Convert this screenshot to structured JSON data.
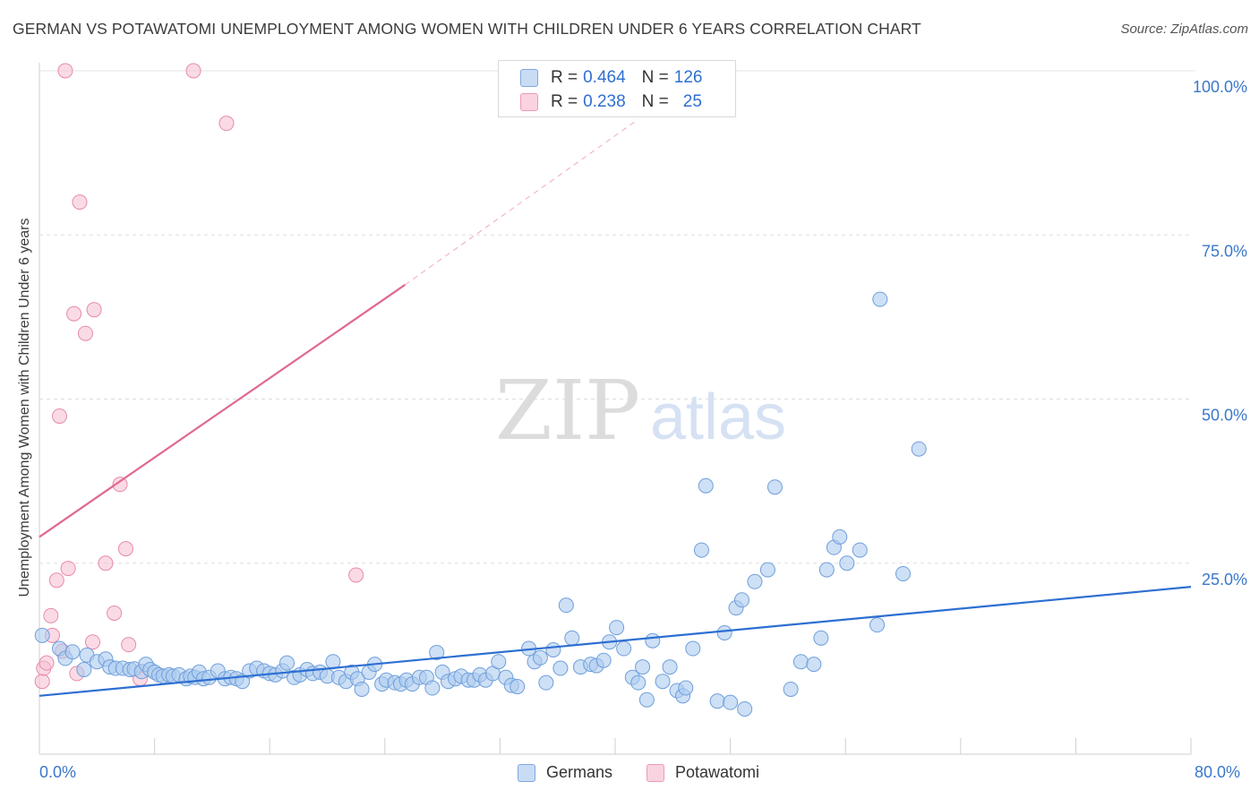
{
  "header": {
    "title": "GERMAN VS POTAWATOMI UNEMPLOYMENT AMONG WOMEN WITH CHILDREN UNDER 6 YEARS CORRELATION CHART",
    "source": "Source: ZipAtlas.com"
  },
  "watermark": {
    "zip": "ZIP",
    "atlas": "atlas"
  },
  "legend_top": {
    "rows": [
      {
        "r_label": "R =",
        "r_value": "0.464",
        "n_label": "N =",
        "n_value": "126",
        "color": "#aecbef"
      },
      {
        "r_label": "R =",
        "r_value": "0.238",
        "n_label": "N =",
        "n_value": "25",
        "color": "#f6bdd0"
      }
    ]
  },
  "legend_bottom": {
    "germans": "Germans",
    "potawatomi": "Potawatomi"
  },
  "x_tick_labels": {
    "left": "0.0%",
    "right": "80.0%"
  },
  "colors": {
    "germans_fill": "#aecbef",
    "germans_stroke": "#6f9fdc",
    "germans_line": "#2d6fd2",
    "pota_fill": "#f6bdd0",
    "pota_stroke": "#e88aab",
    "pota_line": "#e0688f",
    "tick_text": "#3a78c9",
    "grid": "#dddddd"
  },
  "chart_data": {
    "type": "scatter",
    "title": "GERMAN VS POTAWATOMI UNEMPLOYMENT AMONG WOMEN WITH CHILDREN UNDER 6 YEARS CORRELATION CHART",
    "xlabel": "",
    "ylabel": "Unemployment Among Women with Children Under 6 years",
    "xlim": [
      0,
      80
    ],
    "ylim": [
      0,
      100
    ],
    "y_ticks": [
      "100.0%",
      "75.0%",
      "50.0%",
      "25.0%"
    ],
    "y_tick_values": [
      100,
      75,
      50,
      25
    ],
    "grid": true,
    "legend_position": "bottom",
    "series": [
      {
        "name": "Germans",
        "trend": {
          "x": [
            0,
            80
          ],
          "y": [
            4.8,
            21.4
          ],
          "style": "solid"
        },
        "points": [
          [
            0.2,
            14.0
          ],
          [
            1.4,
            12.0
          ],
          [
            1.8,
            10.5
          ],
          [
            2.3,
            11.5
          ],
          [
            3.1,
            8.8
          ],
          [
            3.3,
            11.0
          ],
          [
            4.0,
            10.0
          ],
          [
            4.6,
            10.4
          ],
          [
            4.9,
            9.2
          ],
          [
            5.3,
            9.0
          ],
          [
            5.8,
            9.0
          ],
          [
            6.3,
            8.8
          ],
          [
            6.6,
            8.9
          ],
          [
            7.1,
            8.5
          ],
          [
            7.4,
            9.6
          ],
          [
            7.7,
            8.8
          ],
          [
            8.0,
            8.4
          ],
          [
            8.3,
            8.0
          ],
          [
            8.6,
            7.8
          ],
          [
            9.0,
            8.0
          ],
          [
            9.3,
            7.8
          ],
          [
            9.7,
            8.0
          ],
          [
            10.2,
            7.4
          ],
          [
            10.5,
            7.8
          ],
          [
            10.8,
            7.6
          ],
          [
            11.1,
            8.4
          ],
          [
            11.4,
            7.4
          ],
          [
            11.8,
            7.6
          ],
          [
            12.4,
            8.6
          ],
          [
            12.9,
            7.4
          ],
          [
            13.3,
            7.6
          ],
          [
            13.7,
            7.4
          ],
          [
            14.1,
            7.0
          ],
          [
            14.6,
            8.6
          ],
          [
            15.1,
            9.0
          ],
          [
            15.6,
            8.6
          ],
          [
            16.0,
            8.2
          ],
          [
            16.4,
            8.0
          ],
          [
            16.9,
            8.6
          ],
          [
            17.2,
            9.8
          ],
          [
            17.7,
            7.6
          ],
          [
            18.1,
            8.0
          ],
          [
            18.6,
            8.8
          ],
          [
            19.0,
            8.2
          ],
          [
            19.5,
            8.4
          ],
          [
            20.0,
            7.8
          ],
          [
            20.4,
            10.0
          ],
          [
            20.8,
            7.6
          ],
          [
            21.3,
            7.0
          ],
          [
            21.7,
            8.4
          ],
          [
            22.1,
            7.4
          ],
          [
            22.4,
            5.8
          ],
          [
            22.9,
            8.4
          ],
          [
            23.3,
            9.6
          ],
          [
            23.8,
            6.6
          ],
          [
            24.1,
            7.2
          ],
          [
            24.7,
            6.8
          ],
          [
            25.1,
            6.6
          ],
          [
            25.5,
            7.2
          ],
          [
            25.9,
            6.6
          ],
          [
            26.4,
            7.6
          ],
          [
            26.9,
            7.6
          ],
          [
            27.3,
            6.0
          ],
          [
            27.6,
            11.4
          ],
          [
            28.0,
            8.4
          ],
          [
            28.4,
            7.0
          ],
          [
            28.9,
            7.4
          ],
          [
            29.3,
            7.8
          ],
          [
            29.8,
            7.2
          ],
          [
            30.2,
            7.2
          ],
          [
            30.6,
            8.0
          ],
          [
            31.0,
            7.2
          ],
          [
            31.5,
            8.2
          ],
          [
            31.9,
            10.0
          ],
          [
            32.4,
            7.6
          ],
          [
            32.8,
            6.4
          ],
          [
            33.2,
            6.2
          ],
          [
            34.0,
            12.0
          ],
          [
            34.4,
            10.0
          ],
          [
            34.8,
            10.6
          ],
          [
            35.2,
            6.8
          ],
          [
            35.7,
            11.8
          ],
          [
            36.2,
            9.0
          ],
          [
            36.6,
            18.6
          ],
          [
            37.0,
            13.6
          ],
          [
            37.6,
            9.2
          ],
          [
            38.3,
            9.6
          ],
          [
            38.7,
            9.4
          ],
          [
            39.2,
            10.2
          ],
          [
            39.6,
            13.0
          ],
          [
            40.1,
            15.2
          ],
          [
            40.6,
            12.0
          ],
          [
            41.2,
            7.6
          ],
          [
            41.6,
            6.8
          ],
          [
            41.9,
            9.2
          ],
          [
            42.2,
            4.2
          ],
          [
            42.6,
            13.2
          ],
          [
            43.3,
            7.0
          ],
          [
            43.8,
            9.2
          ],
          [
            44.3,
            5.6
          ],
          [
            44.7,
            4.8
          ],
          [
            44.9,
            6.0
          ],
          [
            45.4,
            12.0
          ],
          [
            46.0,
            27.0
          ],
          [
            46.3,
            36.8
          ],
          [
            47.1,
            4.0
          ],
          [
            47.6,
            14.4
          ],
          [
            48.0,
            3.8
          ],
          [
            48.4,
            18.2
          ],
          [
            48.8,
            19.4
          ],
          [
            49.0,
            2.8
          ],
          [
            49.7,
            22.2
          ],
          [
            50.6,
            24.0
          ],
          [
            51.1,
            36.6
          ],
          [
            52.2,
            5.8
          ],
          [
            52.9,
            10.0
          ],
          [
            53.8,
            9.6
          ],
          [
            54.3,
            13.6
          ],
          [
            54.7,
            24.0
          ],
          [
            55.2,
            27.4
          ],
          [
            55.6,
            29.0
          ],
          [
            56.1,
            25.0
          ],
          [
            57.0,
            27.0
          ],
          [
            58.2,
            15.6
          ],
          [
            58.4,
            65.2
          ],
          [
            60.0,
            23.4
          ],
          [
            61.1,
            42.4
          ]
        ]
      },
      {
        "name": "Potawatomi",
        "trend": {
          "x": [
            0,
            25.4
          ],
          "y": [
            29.0,
            67.4
          ],
          "style": "solid",
          "extend_to": [
            41.6,
            92.6
          ],
          "extend_style": "dashed"
        },
        "points": [
          [
            0.2,
            7.0
          ],
          [
            0.3,
            9.0
          ],
          [
            0.5,
            9.8
          ],
          [
            0.8,
            17.0
          ],
          [
            0.9,
            14.0
          ],
          [
            1.2,
            22.4
          ],
          [
            1.4,
            47.4
          ],
          [
            1.6,
            11.6
          ],
          [
            1.8,
            100.0
          ],
          [
            2.0,
            24.2
          ],
          [
            2.4,
            63.0
          ],
          [
            2.6,
            8.2
          ],
          [
            2.8,
            80.0
          ],
          [
            3.2,
            60.0
          ],
          [
            3.7,
            13.0
          ],
          [
            3.8,
            63.6
          ],
          [
            4.6,
            25.0
          ],
          [
            5.2,
            17.4
          ],
          [
            5.6,
            37.0
          ],
          [
            6.0,
            27.2
          ],
          [
            6.2,
            12.6
          ],
          [
            7.0,
            7.4
          ],
          [
            10.7,
            100.0
          ],
          [
            13.0,
            92.0
          ],
          [
            22.0,
            23.2
          ]
        ]
      }
    ]
  }
}
